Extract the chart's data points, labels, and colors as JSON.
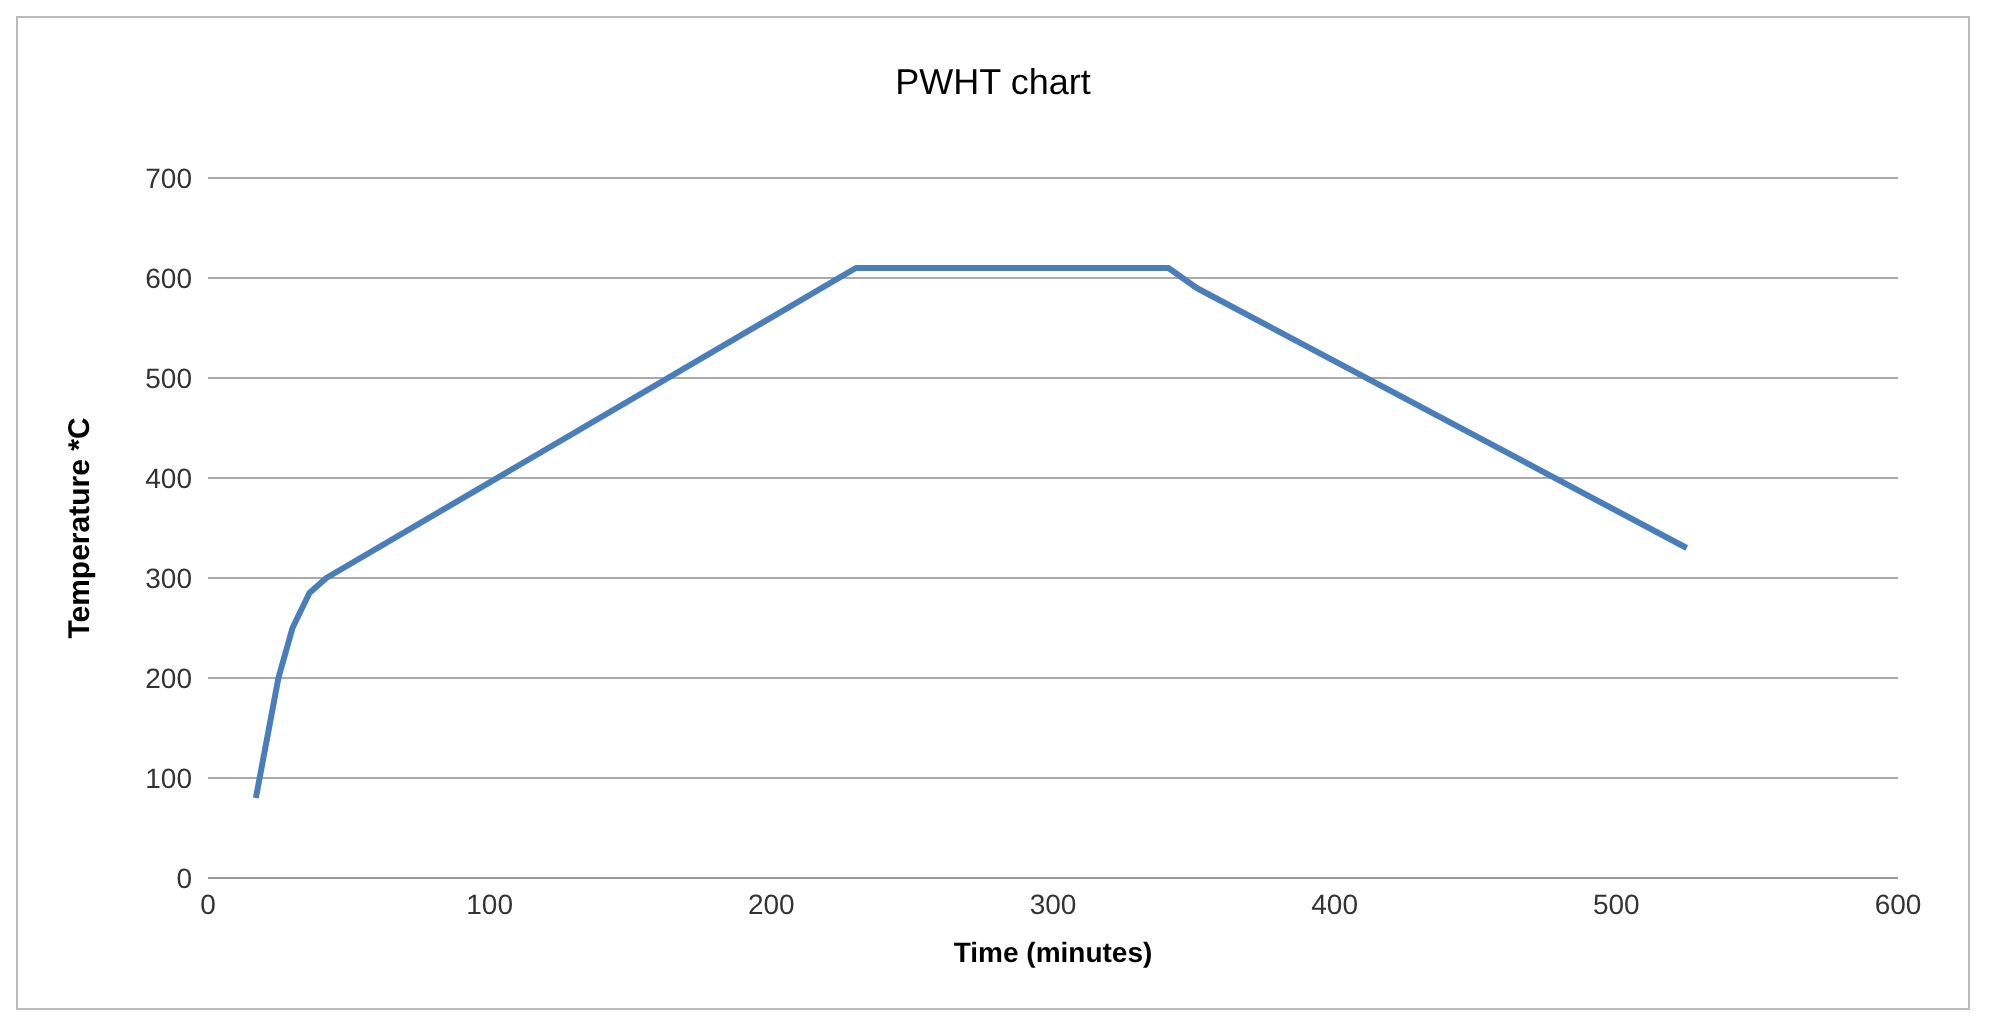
{
  "chart_data": {
    "type": "line",
    "title": "PWHT chart",
    "xlabel": "Time (minutes)",
    "ylabel": "Temperature *C",
    "series": [
      {
        "color": "#4a7ebb",
        "x": [
          17,
          25,
          30,
          36,
          42,
          230,
          341,
          351,
          525
        ],
        "values": [
          80,
          200,
          250,
          285,
          300,
          610,
          610,
          590,
          330
        ]
      }
    ],
    "xlim": [
      0,
      600
    ],
    "xticks": [
      0,
      100,
      200,
      300,
      400,
      500,
      600
    ],
    "ylim": [
      0,
      700
    ],
    "yticks": [
      0,
      100,
      200,
      300,
      400,
      500,
      600,
      700
    ],
    "grid": "y",
    "marker": "none",
    "line_style": "solid"
  }
}
